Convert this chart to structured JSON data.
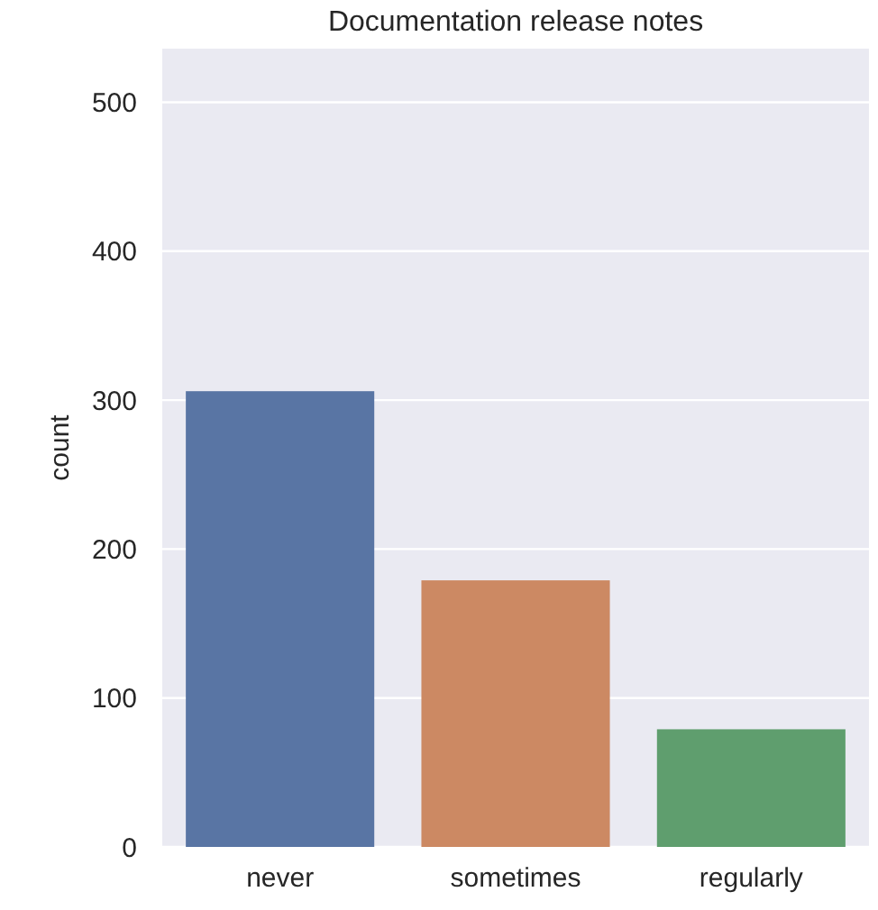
{
  "chart_data": {
    "type": "bar",
    "title": "Documentation release notes",
    "ylabel": "count",
    "categories": [
      "never",
      "sometimes",
      "regularly"
    ],
    "values": [
      306,
      179,
      79
    ],
    "colors": [
      "#5975a4",
      "#cc8963",
      "#5f9e6e"
    ],
    "ylim": [
      0,
      536
    ],
    "yticks": [
      0,
      100,
      200,
      300,
      400,
      500
    ],
    "grid": "y"
  }
}
